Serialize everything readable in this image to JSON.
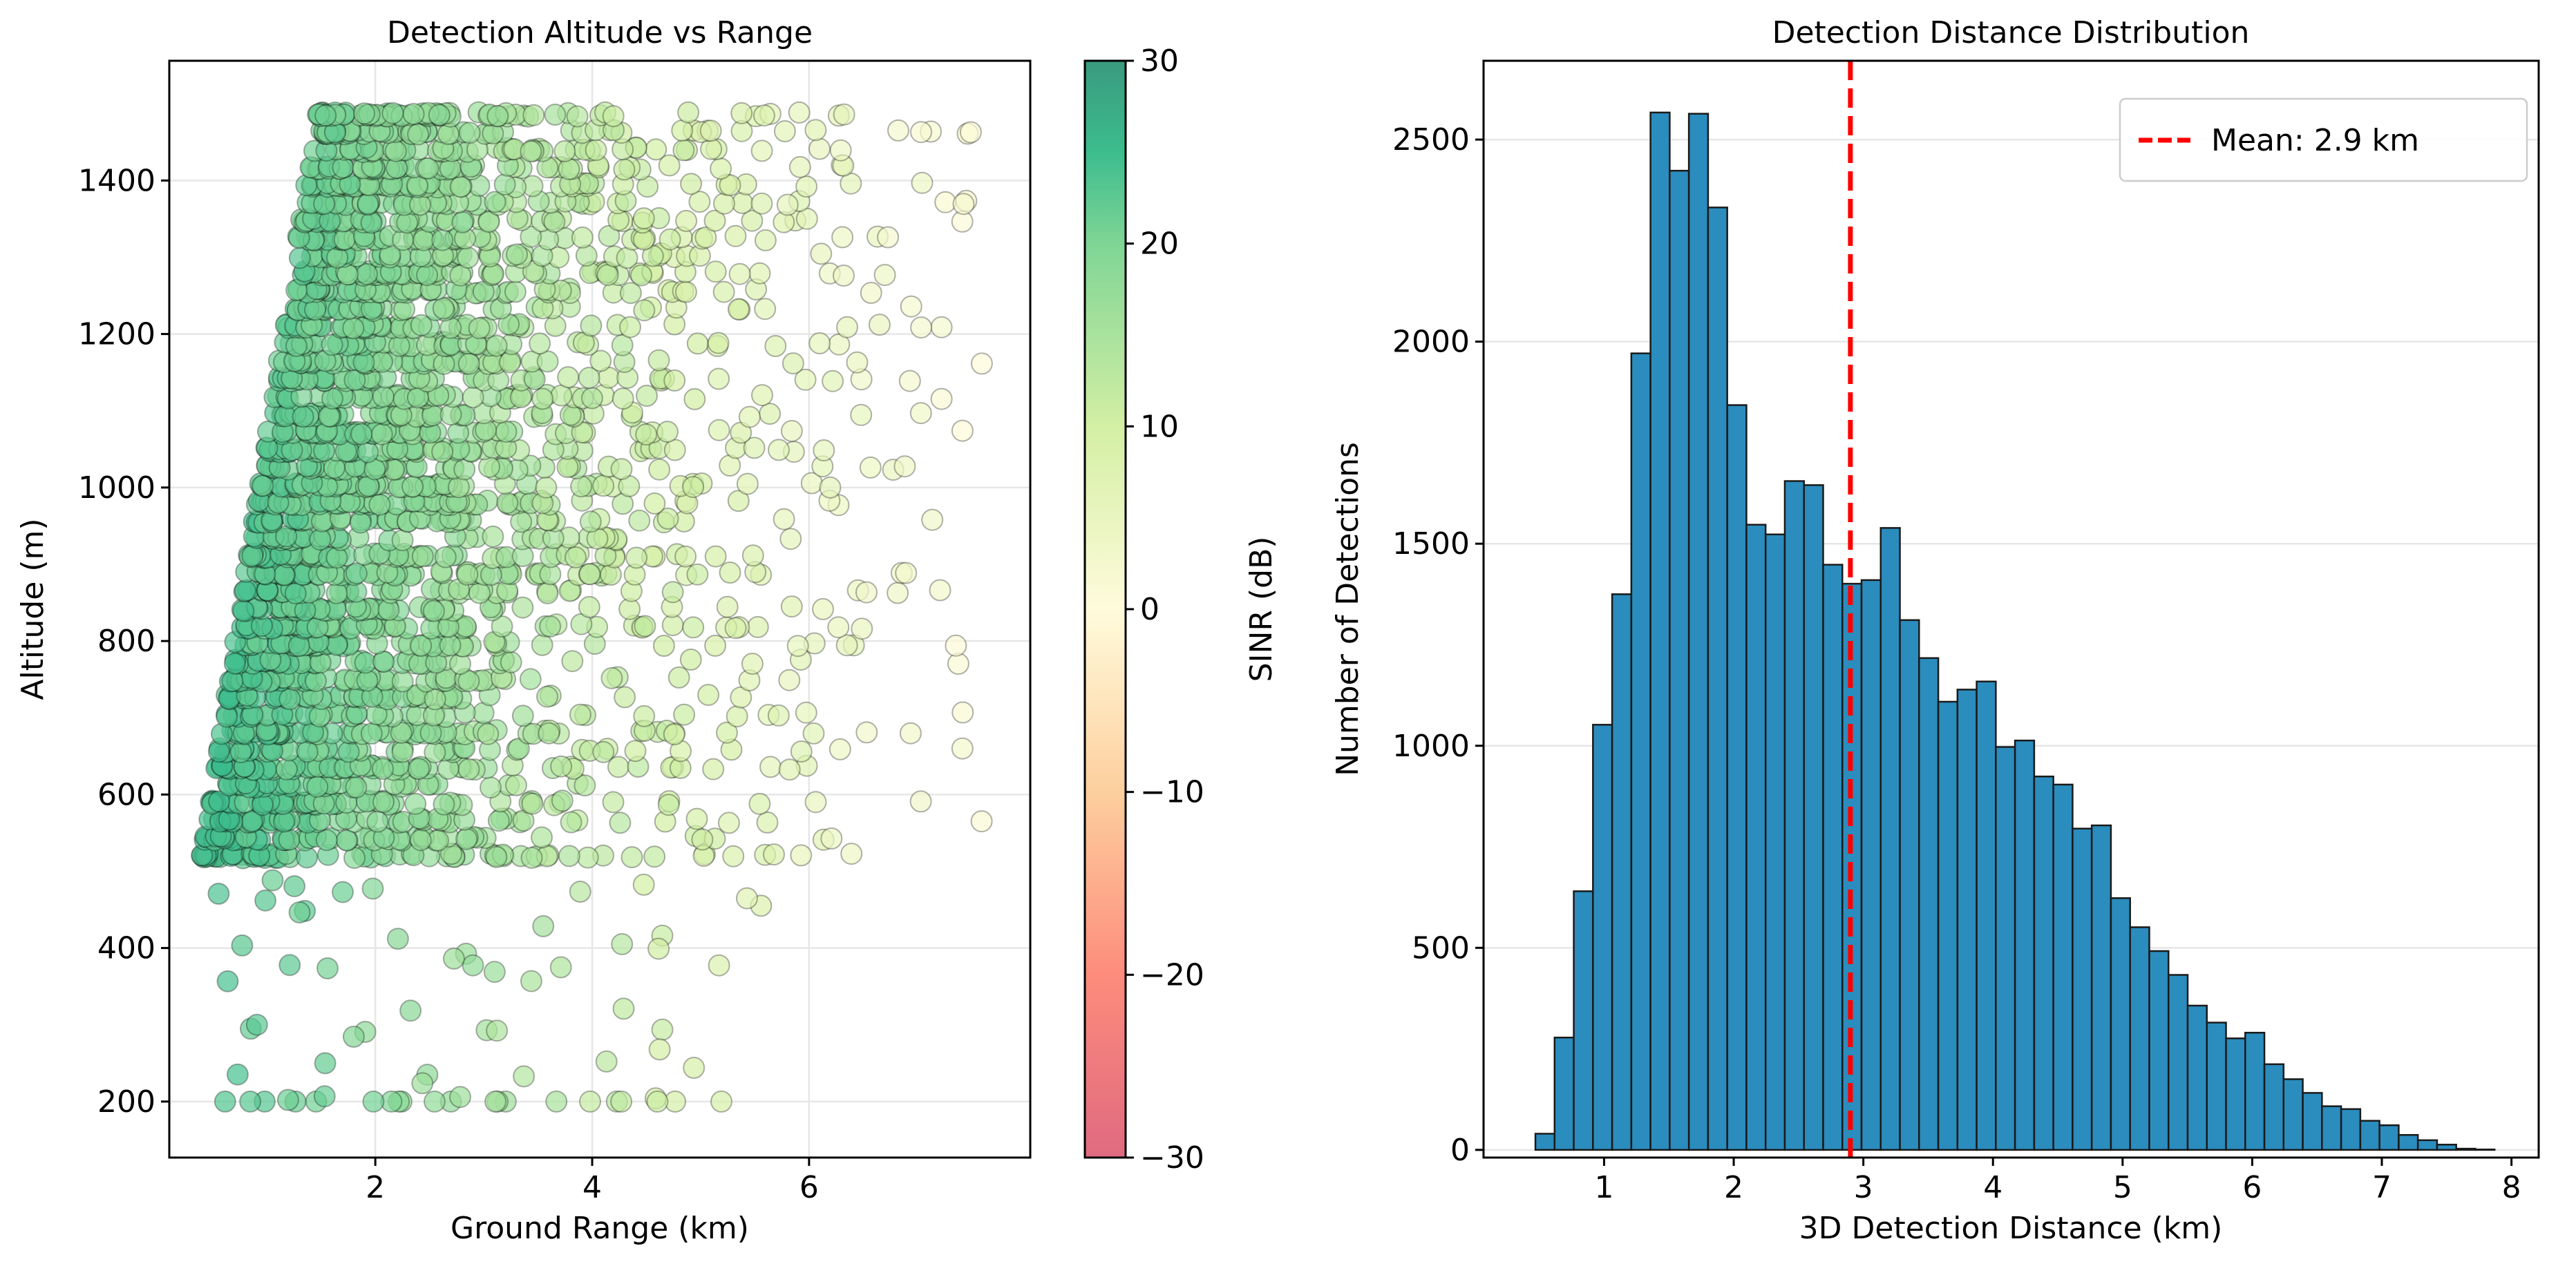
{
  "chart_data": [
    {
      "type": "scatter",
      "title": "Detection Altitude vs Range",
      "xlabel": "Ground Range (km)",
      "ylabel": "Altitude (m)",
      "xlim": [
        0.1,
        8.04
      ],
      "ylim": [
        127,
        1556
      ],
      "xticks": [
        2,
        4,
        6
      ],
      "yticks": [
        200,
        400,
        600,
        800,
        1000,
        1200,
        1400
      ],
      "grid": true,
      "colorbar": {
        "label": "SINR (dB)",
        "range": [
          -30,
          30
        ],
        "ticks": [
          30,
          20,
          10,
          0,
          -10,
          -20,
          -30
        ],
        "tick_labels": [
          "30",
          "20",
          "10",
          "0",
          "−10",
          "−20",
          "−30"
        ],
        "stops": [
          {
            "v": -30,
            "color": "#e06a80"
          },
          {
            "v": -20,
            "color": "#fd8c7c"
          },
          {
            "v": -10,
            "color": "#fdcf9e"
          },
          {
            "v": 0,
            "color": "#fffbdb"
          },
          {
            "v": 10,
            "color": "#d3efa4"
          },
          {
            "v": 20,
            "color": "#7fd595"
          },
          {
            "v": 25,
            "color": "#3cbd8e"
          },
          {
            "v": 30,
            "color": "#3a9a7e"
          }
        ]
      },
      "point_distribution": {
        "altitude_levels_m": [
          520,
          1500
        ],
        "altitude_step_m": 23,
        "min_range_at_520m_km": 0.5,
        "min_range_slope_km_per_m": 0.0011,
        "max_range_km": 7.6,
        "sinr_at_zero_range_db": 26,
        "sinr_slope_db_per_km": -3.3,
        "low_altitude_points": {
          "altitude_range_m": [
            200,
            500
          ],
          "ground_range_km": [
            0.5,
            5.6
          ]
        }
      }
    },
    {
      "type": "bar",
      "subtype": "histogram",
      "title": "Detection Distance Distribution",
      "xlabel": "3D Detection Distance (km)",
      "ylabel": "Number of Detections",
      "xlim": [
        0.07,
        8.21
      ],
      "ylim": [
        -19,
        2695
      ],
      "xticks": [
        1,
        2,
        3,
        4,
        5,
        6,
        7,
        8
      ],
      "yticks": [
        0,
        500,
        1000,
        1500,
        2000,
        2500
      ],
      "grid": true,
      "bin_start": 0.47,
      "bin_width": 0.148,
      "values": [
        40,
        278,
        640,
        1052,
        1375,
        1971,
        2567,
        2423,
        2564,
        2332,
        1843,
        1547,
        1523,
        1655,
        1645,
        1448,
        1401,
        1410,
        1539,
        1311,
        1217,
        1109,
        1139,
        1159,
        997,
        1013,
        924,
        904,
        795,
        803,
        623,
        551,
        492,
        433,
        357,
        315,
        276,
        290,
        212,
        175,
        141,
        108,
        101,
        72,
        61,
        37,
        24,
        13,
        3,
        1
      ],
      "bar_color": "#2b8cbe",
      "mean": 2.9,
      "mean_color": "#ff0000",
      "legend": {
        "label": "Mean: 2.9 km",
        "position": "top-right"
      }
    }
  ]
}
